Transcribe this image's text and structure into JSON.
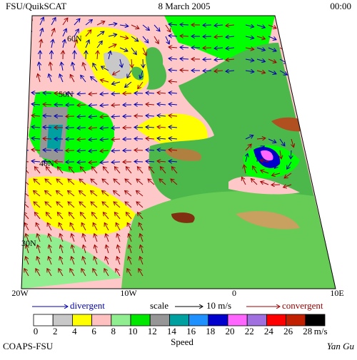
{
  "header": {
    "title": "FSU/QuikSCAT",
    "date": "8 March 2005",
    "time": "00:00"
  },
  "map": {
    "lat_labels": [
      "60N",
      "50N",
      "40N",
      "30N"
    ],
    "lon_labels": [
      "20W",
      "10W",
      "0",
      "10E"
    ]
  },
  "legend": {
    "divergent": "divergent",
    "scale": "scale",
    "scale_value": "10 m/s",
    "convergent": "convergent"
  },
  "colorbar": {
    "labels": [
      "0",
      "2",
      "4",
      "6",
      "8",
      "10",
      "12",
      "14",
      "16",
      "18",
      "20",
      "22",
      "24",
      "26",
      "28"
    ],
    "unit": "m/s",
    "title": "Speed"
  },
  "footer": {
    "left": "COAPS-FSU",
    "right": "Yan Gu"
  }
}
